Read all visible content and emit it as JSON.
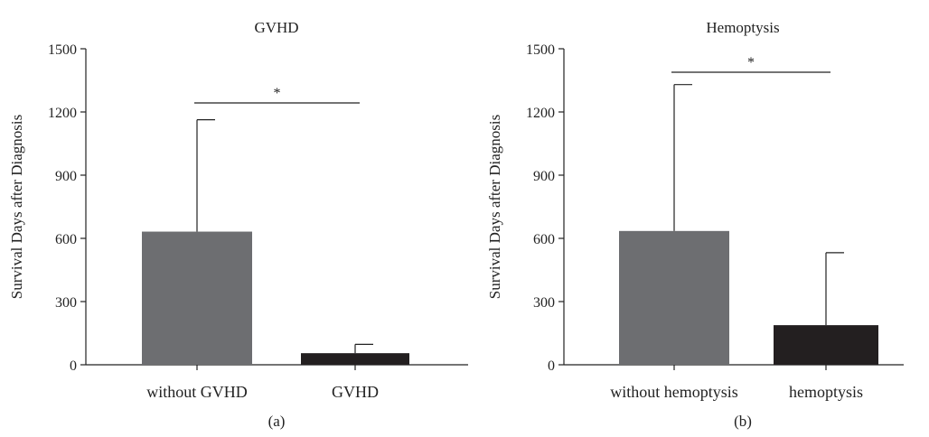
{
  "chart_data": [
    {
      "type": "bar",
      "title": "GVHD",
      "ylabel": "Survival Days after Diagnosis",
      "xlabel": "",
      "categories": [
        "without GVHD",
        "GVHD"
      ],
      "values": [
        632,
        55
      ],
      "error_upper": [
        1163,
        97
      ],
      "ylim": [
        0,
        1500
      ],
      "yticks": [
        "0",
        "300",
        "600",
        "900",
        "1200",
        "1500"
      ],
      "bar_colors": [
        "#6d6e71",
        "#231f20"
      ],
      "significance": "*",
      "panel_label": "(a)",
      "grid": false
    },
    {
      "type": "bar",
      "title": "Hemoptysis",
      "ylabel": "Survival Days after Diagnosis",
      "xlabel": "",
      "categories": [
        "without hemoptysis",
        "hemoptysis"
      ],
      "values": [
        635,
        188
      ],
      "error_upper": [
        1330,
        532
      ],
      "ylim": [
        0,
        1500
      ],
      "yticks": [
        "0",
        "300",
        "600",
        "900",
        "1200",
        "1500"
      ],
      "bar_colors": [
        "#6d6e71",
        "#231f20"
      ],
      "significance": "*",
      "panel_label": "(b)",
      "grid": false
    }
  ]
}
